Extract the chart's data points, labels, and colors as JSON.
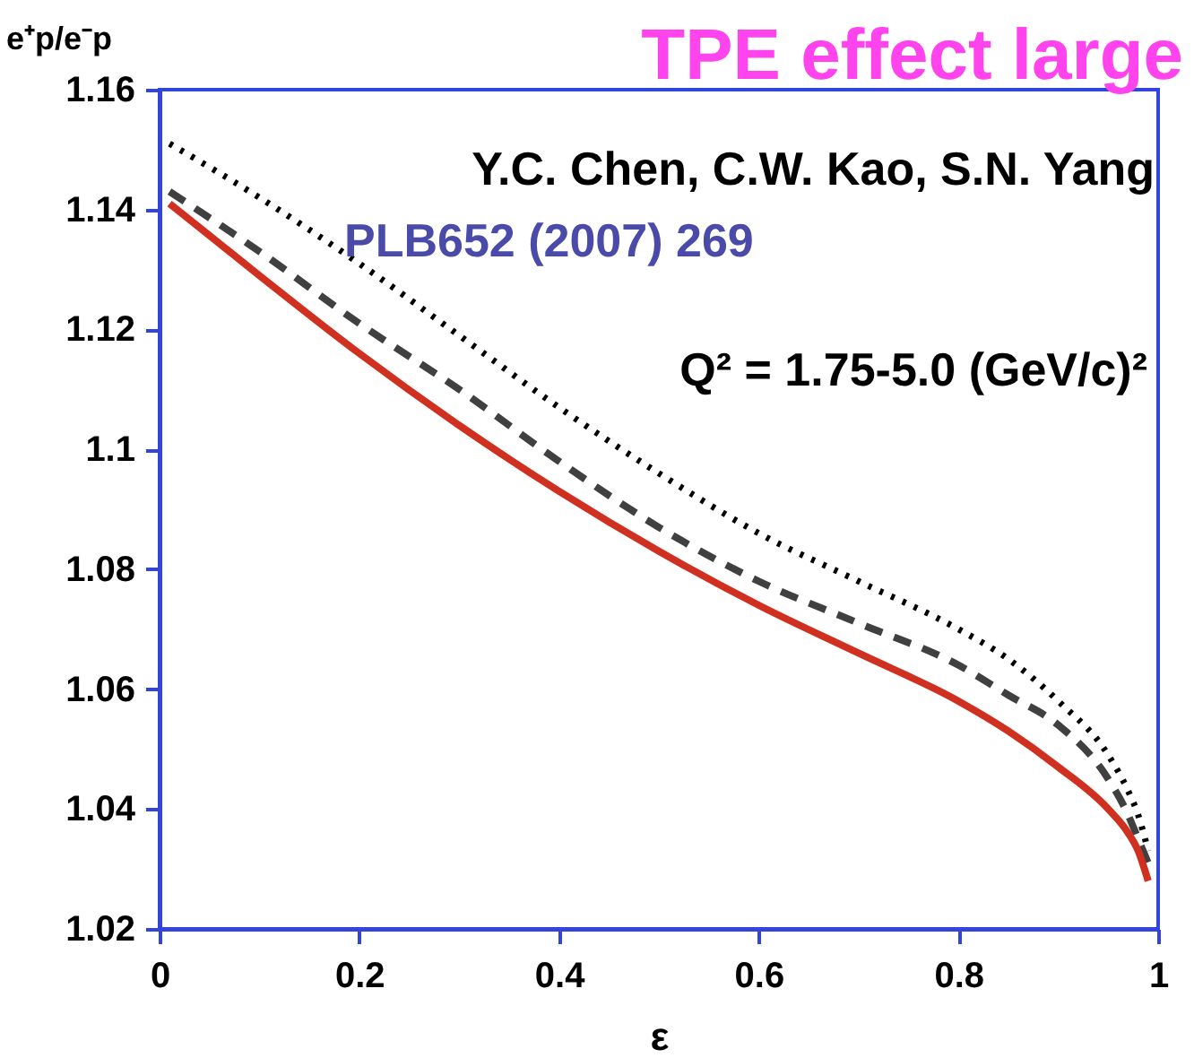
{
  "chart_data": {
    "type": "line",
    "title": "TPE effect large",
    "xlabel": "ε",
    "ylabel": "e⁺p/e⁻p",
    "annotations": [
      "Y.C. Chen, C.W. Kao, S.N. Yang",
      "PLB652 (2007) 269",
      "Q² =  1.75-5.0 (GeV/c)²"
    ],
    "x": [
      0.01,
      0.1,
      0.2,
      0.3,
      0.4,
      0.5,
      0.6,
      0.7,
      0.8,
      0.85,
      0.9,
      0.95,
      0.97,
      0.98,
      0.99
    ],
    "series": [
      {
        "color": "#000000",
        "line_style": "dotted",
        "values": [
          1.151,
          1.142,
          1.131,
          1.119,
          1.107,
          1.096,
          1.086,
          1.078,
          1.07,
          1.065,
          1.058,
          1.049,
          1.043,
          1.039,
          1.033
        ]
      },
      {
        "color": "#404040",
        "line_style": "dashed",
        "values": [
          1.143,
          1.133,
          1.121,
          1.11,
          1.098,
          1.087,
          1.078,
          1.071,
          1.064,
          1.059,
          1.054,
          1.045,
          1.039,
          1.035,
          1.031
        ]
      },
      {
        "color": "#d03020",
        "line_style": "solid",
        "values": [
          1.141,
          1.129,
          1.116,
          1.104,
          1.093,
          1.083,
          1.074,
          1.066,
          1.058,
          1.053,
          1.047,
          1.04,
          1.036,
          1.033,
          1.028
        ]
      }
    ],
    "xlim": [
      0,
      1
    ],
    "ylim": [
      1.02,
      1.16
    ],
    "xticks": [
      0,
      0.2,
      0.4,
      0.6,
      0.8,
      1
    ],
    "yticks": [
      1.02,
      1.04,
      1.06,
      1.08,
      1.1,
      1.12,
      1.14,
      1.16
    ],
    "grid": false
  }
}
